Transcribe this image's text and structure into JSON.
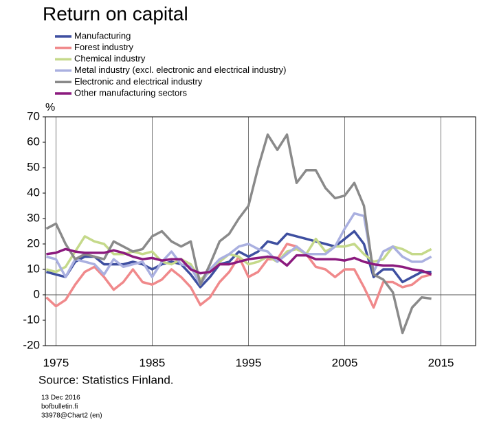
{
  "chart_data": {
    "type": "line",
    "title": "Return on capital",
    "y_label": "%",
    "source": "Source: Statistics Finland.",
    "annotations": [
      "13 Dec 2016",
      "bofbulletin.fi",
      "33978@Chart2 (en)"
    ],
    "x": [
      1974,
      1975,
      1976,
      1977,
      1978,
      1979,
      1980,
      1981,
      1982,
      1983,
      1984,
      1985,
      1986,
      1987,
      1988,
      1989,
      1990,
      1991,
      1992,
      1993,
      1994,
      1995,
      1996,
      1997,
      1998,
      1999,
      2000,
      2001,
      2002,
      2003,
      2004,
      2005,
      2006,
      2007,
      2008,
      2009,
      2010,
      2011,
      2012,
      2013,
      2014
    ],
    "series": [
      {
        "name": "Manufacturing",
        "color": "#3e4fa0",
        "values": [
          9,
          8,
          7,
          13,
          15,
          15,
          12,
          12,
          12,
          13,
          12,
          10,
          12,
          13,
          12,
          8,
          3,
          7,
          12,
          13,
          17,
          15,
          17,
          21,
          20,
          24,
          23,
          22,
          21,
          20,
          19,
          22,
          25,
          20,
          7,
          10,
          10,
          5,
          7,
          9,
          9
        ]
      },
      {
        "name": "Forest industry",
        "color": "#f0898b",
        "values": [
          -1,
          -4.5,
          -2,
          4,
          9,
          11,
          7,
          2,
          5,
          10,
          5,
          4,
          6,
          10,
          7,
          3,
          -4,
          -1,
          5,
          9,
          15,
          7,
          9,
          14,
          14,
          20,
          19,
          16,
          11,
          10,
          7,
          10,
          10,
          3,
          -5,
          5,
          5,
          3,
          4,
          7,
          8
        ]
      },
      {
        "name": "Chemical industry",
        "color": "#c5d98a",
        "values": [
          10,
          9,
          11,
          17,
          23,
          21,
          20,
          16,
          16,
          17,
          16,
          17,
          13,
          12,
          14,
          12,
          6,
          9,
          13,
          16,
          15,
          12,
          13,
          15,
          13,
          17,
          18,
          16,
          22,
          17,
          19,
          19,
          20,
          16,
          13,
          14,
          19,
          18,
          16,
          16,
          18
        ]
      },
      {
        "name": "Metal industry (excl. electronic and electrical industry)",
        "color": "#aab0e0",
        "values": [
          15,
          14,
          7,
          14,
          13,
          12,
          8,
          14,
          11,
          12,
          13,
          7,
          13,
          17,
          12,
          11,
          4,
          10,
          14,
          16,
          19,
          20,
          18,
          17,
          13,
          16,
          19,
          16,
          16,
          16,
          19,
          26,
          32,
          31,
          9,
          17,
          19,
          15,
          13,
          13,
          15
        ]
      },
      {
        "name": "Electronic and electrical industry",
        "color": "#8a8a8a",
        "values": [
          26,
          28,
          20,
          14,
          16,
          15,
          14,
          21,
          19,
          17,
          18,
          23,
          25,
          21,
          19,
          21,
          4,
          12,
          21,
          24,
          30,
          35,
          50,
          63,
          57,
          63,
          44,
          49,
          49,
          42,
          38,
          39,
          44,
          35,
          8,
          6,
          1,
          -15,
          -5,
          -1,
          -1.5
        ]
      },
      {
        "name": "Other manufacturing sectors",
        "color": "#8b1a7e",
        "values": [
          16,
          16.5,
          18,
          17,
          16.5,
          16.5,
          16.5,
          17.5,
          16.5,
          15,
          14,
          14.5,
          13.5,
          14,
          14,
          10,
          8.5,
          9,
          12,
          12,
          13,
          14,
          14.5,
          15,
          14.5,
          11.5,
          15.5,
          15.5,
          14,
          14,
          14,
          13.5,
          14.5,
          13,
          12,
          11.5,
          11.5,
          11,
          10,
          9.5,
          8
        ]
      }
    ],
    "xlim": [
      1973.9,
      2018.6
    ],
    "xticks": [
      1975,
      1985,
      1995,
      2005,
      2015
    ],
    "ylim": [
      -20,
      70
    ],
    "yticks": [
      -20,
      -10,
      0,
      10,
      20,
      30,
      40,
      50,
      60,
      70
    ],
    "grid": "x"
  }
}
